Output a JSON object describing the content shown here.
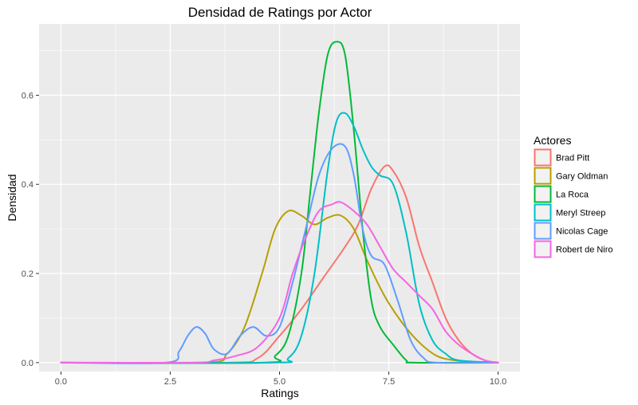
{
  "chart_data": {
    "type": "line",
    "title": "Densidad de Ratings por Actor",
    "xlabel": "Ratings",
    "ylabel": "Densidad",
    "xlim": [
      -0.5,
      10.5
    ],
    "ylim": [
      -0.02,
      0.76
    ],
    "x_ticks": [
      0,
      2.5,
      5,
      7.5,
      10
    ],
    "x_tick_labels": [
      "0.0",
      "2.5",
      "5.0",
      "7.5",
      "10.0"
    ],
    "y_ticks": [
      0,
      0.2,
      0.4,
      0.6
    ],
    "y_tick_labels": [
      "0.0",
      "0.2",
      "0.4",
      "0.6"
    ],
    "grid": true,
    "legend": {
      "title": "Actores",
      "position": "right"
    },
    "series": [
      {
        "name": "Brad Pitt",
        "color": "#F8766D",
        "x": [
          0,
          3.8,
          4.5,
          5.0,
          5.5,
          6.0,
          6.5,
          6.8,
          7.1,
          7.4,
          7.6,
          7.9,
          8.2,
          8.5,
          8.8,
          9.1,
          9.4,
          9.7,
          10.0
        ],
        "y": [
          0,
          0,
          0.01,
          0.06,
          0.12,
          0.19,
          0.26,
          0.31,
          0.39,
          0.44,
          0.43,
          0.37,
          0.26,
          0.18,
          0.1,
          0.05,
          0.02,
          0.005,
          0
        ]
      },
      {
        "name": "Gary Oldman",
        "color": "#B79F00",
        "x": [
          0,
          3.3,
          3.8,
          4.2,
          4.6,
          4.9,
          5.2,
          5.5,
          5.8,
          6.1,
          6.4,
          6.7,
          7.0,
          7.4,
          7.8,
          8.2,
          8.6,
          9.0,
          9.5,
          10.0
        ],
        "y": [
          0,
          0,
          0.02,
          0.08,
          0.2,
          0.3,
          0.34,
          0.33,
          0.31,
          0.325,
          0.33,
          0.3,
          0.23,
          0.15,
          0.09,
          0.045,
          0.015,
          0.005,
          0.001,
          0
        ]
      },
      {
        "name": "La Roca",
        "color": "#00BA38",
        "x": [
          0,
          4.6,
          4.9,
          5.2,
          5.5,
          5.7,
          5.9,
          6.1,
          6.3,
          6.5,
          6.7,
          6.9,
          7.1,
          7.3,
          7.6,
          7.9,
          8.1,
          10.0
        ],
        "y": [
          0,
          0,
          0.015,
          0.06,
          0.2,
          0.38,
          0.56,
          0.69,
          0.72,
          0.69,
          0.52,
          0.3,
          0.14,
          0.08,
          0.04,
          0.005,
          0,
          0
        ]
      },
      {
        "name": "Meryl Streep",
        "color": "#00BFC4",
        "x": [
          0,
          4.8,
          5.2,
          5.5,
          5.8,
          6.1,
          6.3,
          6.5,
          6.7,
          6.9,
          7.1,
          7.3,
          7.6,
          7.9,
          8.2,
          8.5,
          8.8,
          9.1,
          10.0
        ],
        "y": [
          0,
          0,
          0.01,
          0.06,
          0.2,
          0.43,
          0.54,
          0.56,
          0.53,
          0.48,
          0.44,
          0.42,
          0.4,
          0.29,
          0.13,
          0.05,
          0.02,
          0.005,
          0
        ]
      },
      {
        "name": "Nicolas Cage",
        "color": "#619CFF",
        "x": [
          0,
          2.4,
          2.7,
          2.9,
          3.1,
          3.3,
          3.5,
          3.8,
          4.1,
          4.4,
          4.7,
          5.0,
          5.3,
          5.6,
          5.9,
          6.2,
          6.5,
          6.7,
          6.9,
          7.1,
          7.4,
          7.7,
          8.0,
          8.3,
          8.6,
          10.0
        ],
        "y": [
          0,
          0,
          0.025,
          0.06,
          0.08,
          0.065,
          0.03,
          0.02,
          0.06,
          0.08,
          0.06,
          0.08,
          0.18,
          0.3,
          0.42,
          0.48,
          0.485,
          0.42,
          0.3,
          0.24,
          0.22,
          0.14,
          0.05,
          0.01,
          0,
          0
        ]
      },
      {
        "name": "Robert de Niro",
        "color": "#F564E3",
        "x": [
          0,
          3.0,
          3.5,
          4.0,
          4.5,
          5.0,
          5.3,
          5.6,
          5.9,
          6.2,
          6.4,
          6.7,
          7.0,
          7.3,
          7.6,
          7.9,
          8.2,
          8.5,
          8.8,
          9.1,
          9.4,
          9.7,
          10.0
        ],
        "y": [
          0,
          0,
          0.005,
          0.015,
          0.035,
          0.1,
          0.2,
          0.28,
          0.34,
          0.355,
          0.36,
          0.34,
          0.31,
          0.26,
          0.21,
          0.18,
          0.15,
          0.12,
          0.07,
          0.04,
          0.02,
          0.005,
          0
        ]
      }
    ]
  }
}
